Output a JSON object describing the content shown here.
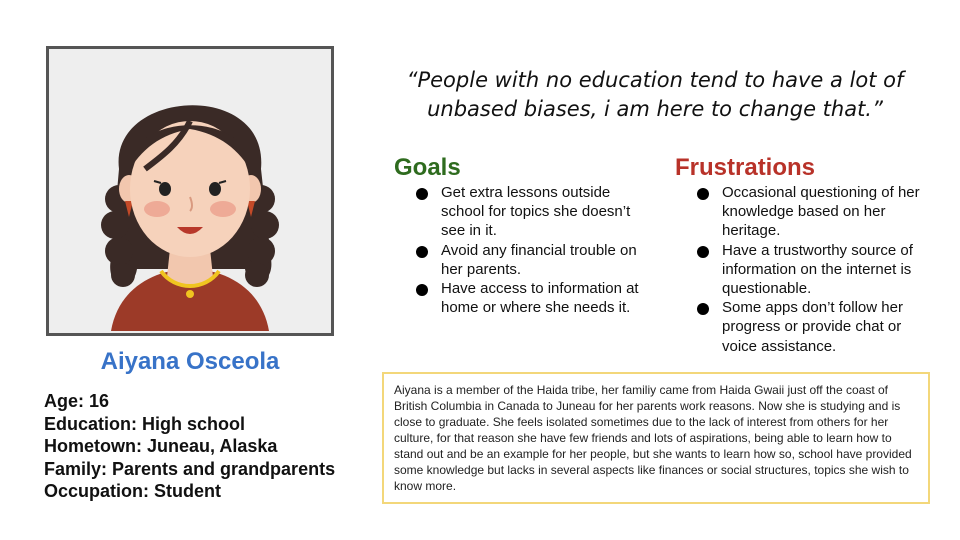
{
  "persona": {
    "name": "Aiyana Osceola",
    "facts": [
      "Age: 16",
      "Education: High school",
      "Hometown: Juneau, Alaska",
      "Family: Parents and grandparents",
      "Occupation: Student"
    ]
  },
  "quote": "“People with no education tend to have a lot of unbased biases, i am here to change that.”",
  "goals": {
    "title": "Goals",
    "items": [
      "Get extra lessons outside school for topics she doesn’t see in it.",
      "Avoid any financial trouble on her parents.",
      "Have access to information at home or where she needs it."
    ]
  },
  "frustrations": {
    "title": "Frustrations",
    "items": [
      "Occasional questioning of her knowledge based on her heritage.",
      "Have a trustworthy source of information on the internet is questionable.",
      "Some apps don’t follow her progress or provide chat or voice assistance."
    ]
  },
  "bio": "Aiyana is a member of the Haida tribe, her familiy came from Haida Gwaii just off the coast of British Columbia in Canada to Juneau for her parents work reasons. Now she is studying and is close to graduate. She feels isolated sometimes due to the lack of interest from others for her culture, for that reason she have few friends and lots of aspirations, being able to learn how to stand out and be an example for her people, but she wants to learn how so, school have provided some knowledge but lacks in several aspects like finances or social structures, topics she wish to know more.",
  "colors": {
    "name": "#3873c8",
    "goals": "#2e6b1e",
    "frustrations": "#b83229",
    "bio_border": "#f3d77a"
  },
  "icons": {
    "avatar": "girl-portrait-illustration"
  }
}
